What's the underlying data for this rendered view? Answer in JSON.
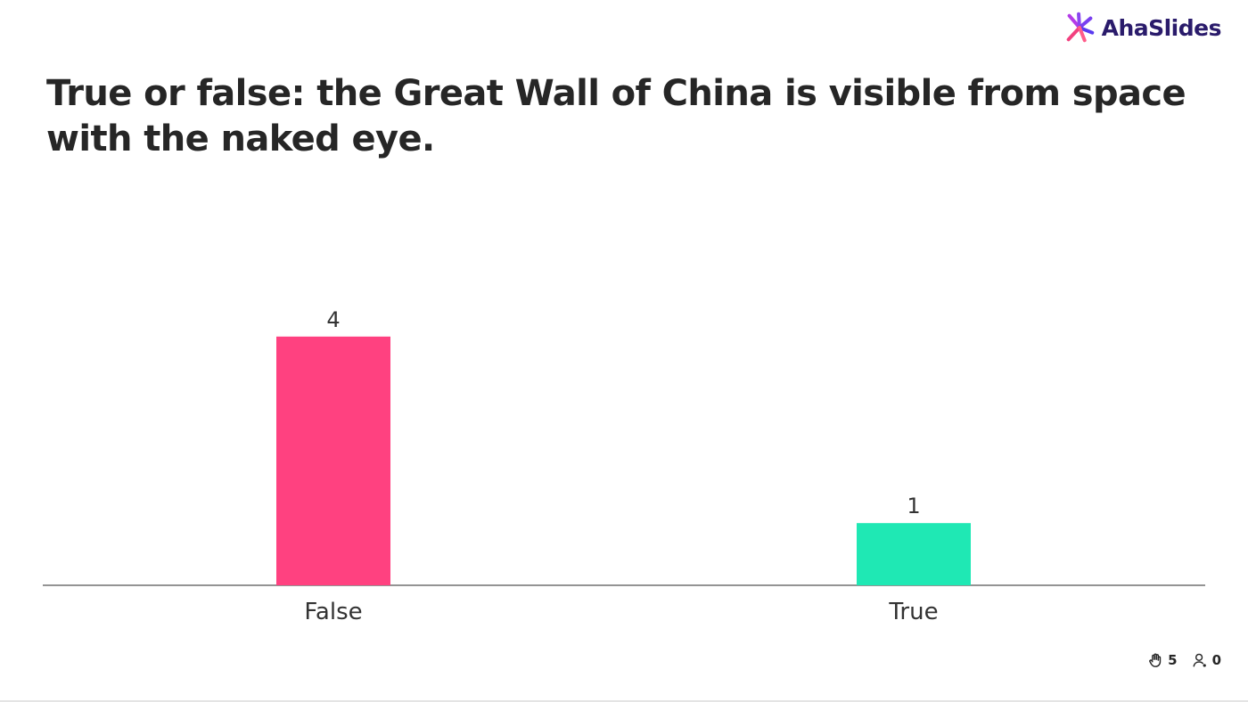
{
  "brand": {
    "name": "AhaSlides",
    "logo_icon": "ahaslides-logo-icon",
    "text_color": "#2a1b6b"
  },
  "question": {
    "text": "True or false: the Great Wall of China is visible from space with the naked eye."
  },
  "chart_data": {
    "type": "bar",
    "categories": [
      "False",
      "True"
    ],
    "values": [
      4,
      1
    ],
    "colors": [
      "#ff4180",
      "#1fe8b4"
    ],
    "data_labels": [
      "4",
      "1"
    ],
    "ylim": [
      0,
      5
    ],
    "grid": false,
    "title": "",
    "xlabel": "",
    "ylabel": ""
  },
  "footer": {
    "responses": {
      "icon": "raised-hand-icon",
      "count": "5"
    },
    "audience": {
      "icon": "user-icon",
      "count": "0"
    }
  }
}
